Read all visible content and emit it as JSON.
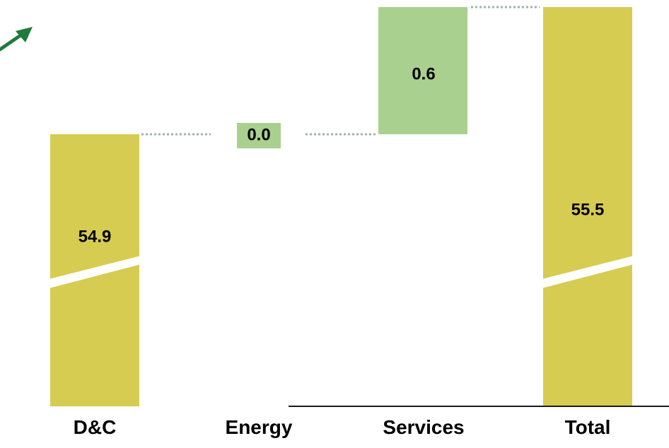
{
  "chart_data": {
    "type": "bar",
    "subtype": "waterfall",
    "categories": [
      "D&C",
      "Energy",
      "Services",
      "Total"
    ],
    "values": [
      54.9,
      0.0,
      0.6,
      55.5
    ],
    "value_labels": [
      "54.9",
      "0.0",
      "0.6",
      "55.5"
    ],
    "kinds": [
      "total",
      "delta",
      "delta",
      "total"
    ],
    "title": "",
    "xlabel": "",
    "ylabel": "",
    "axis_break": true,
    "connectors": "dotted",
    "grid": false,
    "legend": "none"
  },
  "colors": {
    "increase_bar": "#a9d08e",
    "total_bar": "#d6cc52",
    "connector": "#9fb3a8",
    "axis": "#1a1a1a",
    "text": "#000000",
    "arrow": "#1e7b3a"
  },
  "icons": {
    "arrow": "trend-up-arrow-icon"
  }
}
